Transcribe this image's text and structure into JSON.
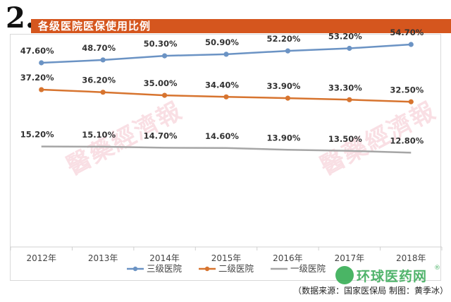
{
  "header": {
    "section_number": "2.",
    "title": "各级医院医保使用比例"
  },
  "colors": {
    "title_bar": "#d5561e",
    "series_1": "#6b93c4",
    "series_2": "#d7742f",
    "series_3": "#a6a6a6"
  },
  "chart_data": {
    "type": "line",
    "title": "各级医院医保使用比例",
    "categories": [
      "2012年",
      "2013年",
      "2014年",
      "2015年",
      "2016年",
      "2017年",
      "2018年"
    ],
    "series": [
      {
        "name": "三级医院",
        "values": [
          47.6,
          48.7,
          50.3,
          50.9,
          52.2,
          53.2,
          54.7
        ],
        "labels": [
          "47.60%",
          "48.70%",
          "50.30%",
          "50.90%",
          "52.20%",
          "53.20%",
          "54.70%"
        ],
        "markers": true
      },
      {
        "name": "二级医院",
        "values": [
          37.2,
          36.2,
          35.0,
          34.4,
          33.9,
          33.3,
          32.5
        ],
        "labels": [
          "37.20%",
          "36.20%",
          "35.00%",
          "34.40%",
          "33.90%",
          "33.30%",
          "32.50%"
        ],
        "markers": true
      },
      {
        "name": "一级医院",
        "values": [
          15.2,
          15.1,
          14.7,
          14.6,
          13.9,
          13.5,
          12.8
        ],
        "labels": [
          "15.20%",
          "15.10%",
          "14.70%",
          "14.60%",
          "13.90%",
          "13.50%",
          "12.80%"
        ],
        "markers": false
      }
    ],
    "y_axis_visible": false,
    "grid": false,
    "legend": "bottom-center"
  },
  "watermarks": [
    "醫藥經濟報",
    "醫藥經濟報"
  ],
  "brand": {
    "name": "环球医药网",
    "reg": "®"
  },
  "source_note": "（数据来源：国家医保局  制图：黄季冰）"
}
